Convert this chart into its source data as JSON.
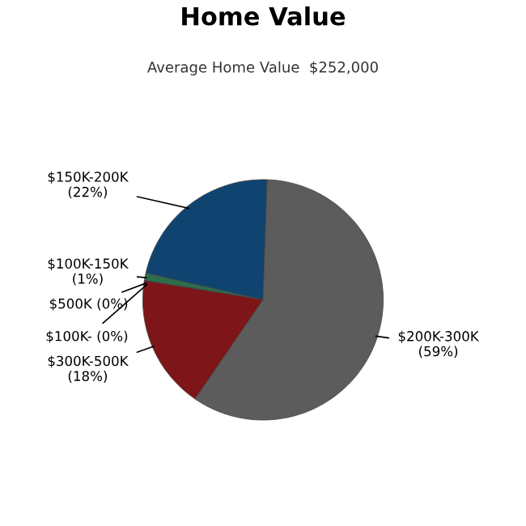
{
  "chart_data": {
    "type": "pie",
    "title": "Home Value",
    "subtitle": "Average Home Value  $252,000",
    "categories": [
      "$150K-200K",
      "$100K-150K",
      "$500K",
      "$100K-",
      "$300K-500K",
      "$200K-300K"
    ],
    "values": [
      22,
      1,
      0,
      0,
      18,
      59
    ],
    "value_labels": [
      "(22%)",
      "(1%)",
      "(0%)",
      "(0%)",
      "(18%)",
      "(59%)"
    ],
    "colors": [
      "#0f4370",
      "#2d6e4a",
      "#8a6a2a",
      "#6a4a8a",
      "#7d1519",
      "#5c5c5c"
    ]
  }
}
